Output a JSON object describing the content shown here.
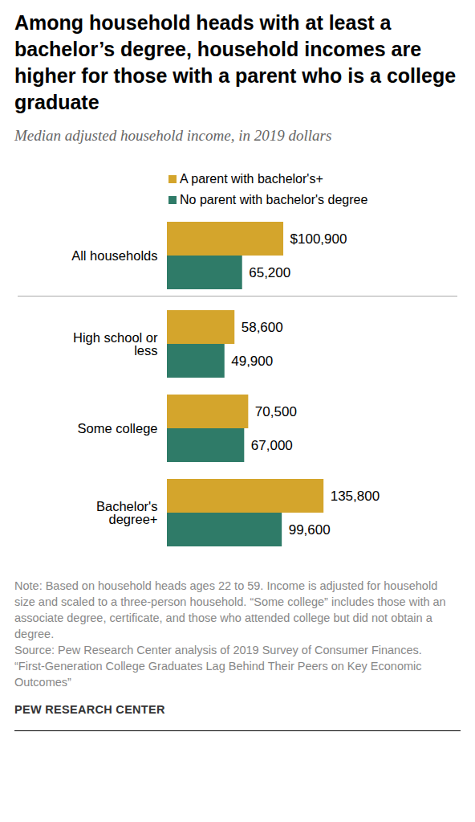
{
  "chart_data": {
    "type": "bar",
    "orientation": "horizontal",
    "title": "Among household heads with at least a bachelor’s degree, household incomes are higher for those with a parent who is a college graduate",
    "subtitle": "Median adjusted household income, in 2019 dollars",
    "categories": [
      "All households",
      "High school or less",
      "Some college",
      "Bachelor's degree+"
    ],
    "series": [
      {
        "name": "A parent with bachelor's+",
        "color": "#d4a52c",
        "values": [
          100900,
          58600,
          70500,
          135800
        ],
        "value_labels": [
          "$100,900",
          "58,600",
          "70,500",
          "135,800"
        ]
      },
      {
        "name": "No parent with bachelor's degree",
        "color": "#2f7b68",
        "values": [
          65200,
          49900,
          67000,
          99600
        ],
        "value_labels": [
          "65,200",
          "49,900",
          "67,000",
          "99,600"
        ]
      }
    ],
    "xlim": [
      0,
      160000
    ],
    "xticks": [],
    "data_labels": true,
    "tick_labels": false,
    "grid": false,
    "legend": "top-left",
    "notes": [
      "Note: Based on household heads ages 22 to 59. Income is adjusted for household size and scaled to a three-person household. “Some college” includes those with an associate degree, certificate, and those who attended college but did not obtain a degree.",
      "Source: Pew Research Center analysis of 2019 Survey of Consumer Finances.",
      "“First-Generation College Graduates Lag Behind Their Peers on Key Economic Outcomes”"
    ],
    "source": "PEW RESEARCH CENTER"
  }
}
